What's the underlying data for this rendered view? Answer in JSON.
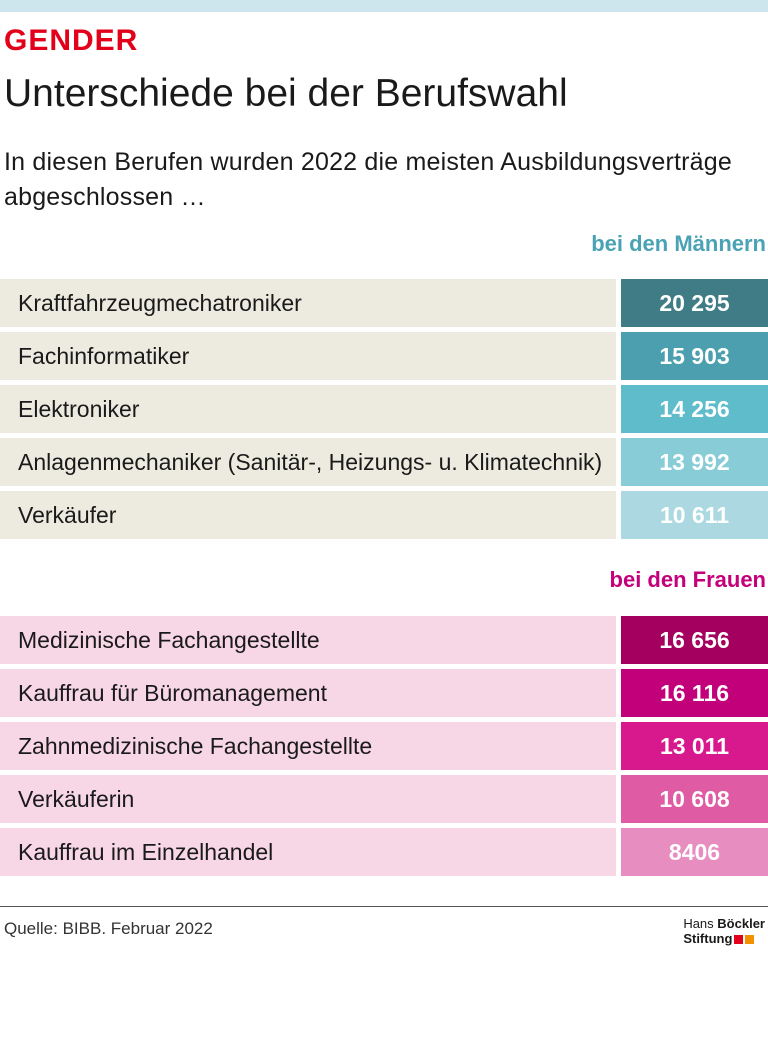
{
  "header": {
    "kicker": "GENDER",
    "title": "Unterschiede bei der Berufswahl",
    "subtitle": "In diesen Berufen wurden 2022 die meisten Ausbildungs­verträge abgeschlossen …"
  },
  "chart_data": {
    "type": "table",
    "title": "Unterschiede bei der Berufswahl",
    "subtitle": "In diesen Berufen wurden 2022 die meisten Ausbildungs­verträge abgeschlossen …",
    "groups": [
      {
        "name": "bei den Männern",
        "rows": [
          {
            "label": "Kraftfahrzeugmechatroniker",
            "value": 20295,
            "display": "20 295"
          },
          {
            "label": "Fachinformatiker",
            "value": 15903,
            "display": "15 903"
          },
          {
            "label": "Elektroniker",
            "value": 14256,
            "display": "14 256"
          },
          {
            "label": "Anlagenmechaniker (Sanitär-, Heizungs- u. Klimatechnik)",
            "value": 13992,
            "display": "13 992"
          },
          {
            "label": "Verkäufer",
            "value": 10611,
            "display": "10 611"
          }
        ]
      },
      {
        "name": "bei den Frauen",
        "rows": [
          {
            "label": "Medizinische Fachangestellte",
            "value": 16656,
            "display": "16 656"
          },
          {
            "label": "Kauffrau für Büromanagement",
            "value": 16116,
            "display": "16 116"
          },
          {
            "label": "Zahnmedizinische Fachangestellte",
            "value": 13011,
            "display": "13 011"
          },
          {
            "label": "Verkäuferin",
            "value": 10608,
            "display": "10 608"
          },
          {
            "label": "Kauffrau im Einzelhandel",
            "value": 8406,
            "display": "8406"
          }
        ]
      }
    ]
  },
  "footer": {
    "source": "Quelle: BIBB. Februar 2022",
    "logo_line1_a": "Hans",
    "logo_line1_b": "Böckler",
    "logo_line2": "Stiftung"
  },
  "colors": {
    "topbar": "#cde6ee",
    "kicker": "#e2001a",
    "men_label": "#4aa3b4",
    "women_label": "#c4007a",
    "men_row_bg": "#edebe0",
    "women_row_bg": "#f7d6e6",
    "men_values": [
      "#3f7c86",
      "#4b9fae",
      "#5ebccb",
      "#88ccd8",
      "#acd9e1"
    ],
    "women_values": [
      "#a3005f",
      "#c2007a",
      "#d8198e",
      "#df5ba4",
      "#e78dbf"
    ],
    "logo_sq1": "#e2001a",
    "logo_sq2": "#f39200"
  }
}
